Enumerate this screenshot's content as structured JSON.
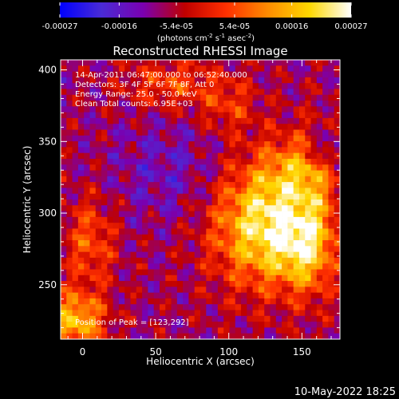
{
  "colorbar": {
    "ticks": [
      "-0.00027",
      "-0.00016",
      "-5.4e-05",
      "5.4e-05",
      "0.00016",
      "0.00027"
    ],
    "tick_values": [
      -0.00027,
      -0.00016,
      -5.4e-05,
      5.4e-05,
      0.00016,
      0.00027
    ],
    "range": [
      -0.00027,
      0.00027
    ],
    "unit_prefix": "(photons cm",
    "unit_exp1": "-2",
    "unit_mid": " s",
    "unit_exp2": "-1",
    "unit_tail": " asec",
    "unit_exp3": "-2",
    "unit_close": ")",
    "colormap": [
      "#0000ff",
      "#4a2bd6",
      "#7a00b0",
      "#c00000",
      "#ff3000",
      "#ff8c00",
      "#ffd800",
      "#ffffff"
    ]
  },
  "chart_data": {
    "type": "heatmap",
    "title": "Reconstructed RHESSI Image",
    "xlabel": "Heliocentric X (arcsec)",
    "ylabel": "Heliocentric Y (arcsec)",
    "xlim": [
      -15,
      176
    ],
    "ylim": [
      212,
      407
    ],
    "xticks": [
      0,
      50,
      100,
      150
    ],
    "yticks": [
      250,
      300,
      350,
      400
    ],
    "annotations": [
      "14-Apr-2011 06:47:00.000 to 06:52:40.000",
      "Detectors: 3F 4F 5F 6F 7F 8F, Att 0",
      "Energy Range: 25.0 - 50.0 keV",
      "Clean     Total counts: 6.95E+03"
    ],
    "peak_label": "Position of Peak = [123,292]",
    "peak": [
      123,
      292
    ]
  },
  "footer": {
    "date": "10-May-2022 18:25"
  }
}
